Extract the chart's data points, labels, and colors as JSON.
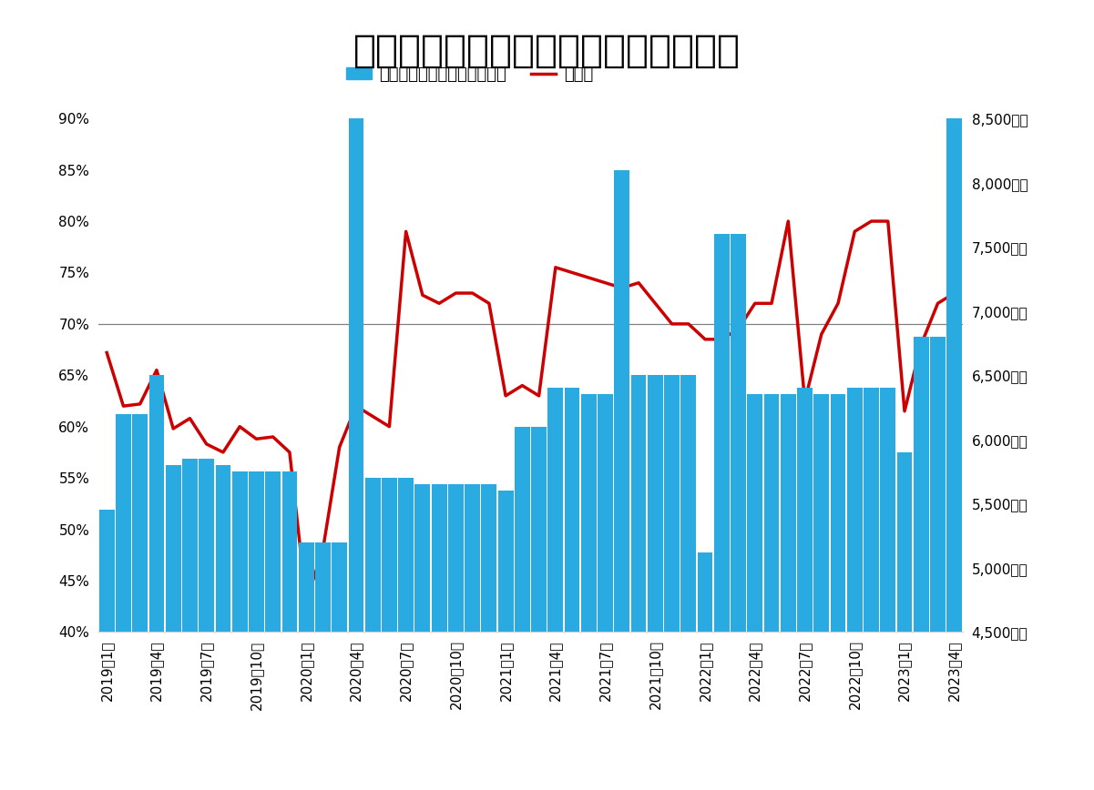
{
  "title": "首都圏の新築マンション価格・契約率",
  "bar_label": "新築マンション価格（万円）",
  "line_label": "契約率",
  "bar_color": "#29ABE2",
  "line_color": "#CC0000",
  "background_color": "#FFFFFF",
  "x_labels": [
    "2019年1月",
    "2019年4月",
    "2019年7月",
    "2019年10月",
    "2020年1月",
    "2020年4月",
    "2020年7月",
    "2020年10月",
    "2021年1月",
    "2021年4月",
    "2021年7月",
    "2021年10月",
    "2022年1月",
    "2022年4月",
    "2022年7月",
    "2022年10月",
    "2023年1月",
    "2023年4月"
  ],
  "prices_monthly": [
    5450,
    6200,
    6200,
    6500,
    5800,
    5850,
    5850,
    5800,
    5750,
    5750,
    5750,
    5750,
    5200,
    5200,
    5200,
    8820,
    5700,
    5700,
    5700,
    5650,
    5650,
    5650,
    5650,
    5650,
    5600,
    6100,
    6100,
    6400,
    6400,
    6350,
    6350,
    8100,
    6500,
    6500,
    6500,
    6500,
    5120,
    7600,
    7600,
    6350,
    6350,
    6350,
    6400,
    6350,
    6350,
    6400,
    6400,
    6400,
    5900,
    6800,
    6800,
    8950
  ],
  "contract_monthly": [
    0.672,
    0.62,
    0.622,
    0.655,
    0.598,
    0.608,
    0.583,
    0.575,
    0.6,
    0.588,
    0.59,
    0.575,
    0.43,
    0.48,
    0.58,
    0.62,
    0.61,
    0.6,
    0.79,
    0.728,
    0.72,
    0.73,
    0.73,
    0.72,
    0.63,
    0.64,
    0.63,
    0.755,
    0.75,
    0.745,
    0.74,
    0.735,
    0.74,
    0.72,
    0.7,
    0.7,
    0.685,
    0.685,
    0.695,
    0.72,
    0.72,
    0.8,
    0.625,
    0.69,
    0.72,
    0.79,
    0.8,
    0.8,
    0.615,
    0.68,
    0.72,
    0.73
  ],
  "xtick_positions": [
    0,
    3,
    6,
    9,
    12,
    15,
    18,
    21,
    24,
    27,
    30,
    33,
    36,
    39,
    42,
    45,
    48,
    51
  ],
  "yleft_min": 0.4,
  "yleft_max": 0.9,
  "yleft_ticks": [
    0.4,
    0.45,
    0.5,
    0.55,
    0.6,
    0.65,
    0.7,
    0.75,
    0.8,
    0.85,
    0.9
  ],
  "yright_min": 4500,
  "yright_max": 8500,
  "yright_ticks": [
    4500,
    5000,
    5500,
    6000,
    6500,
    7000,
    7500,
    8000,
    8500
  ],
  "hline_y": 0.7,
  "title_fontsize": 30,
  "tick_fontsize": 11,
  "legend_fontsize": 13
}
